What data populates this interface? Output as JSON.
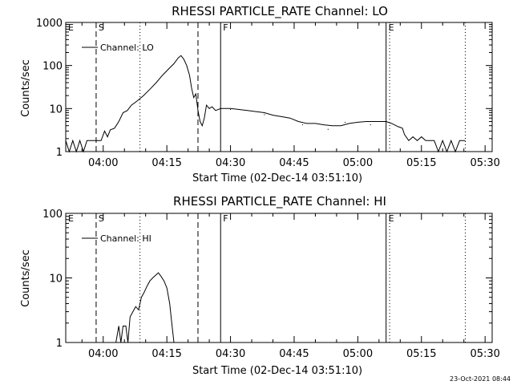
{
  "footer": {
    "timestamp": "23-Oct-2021 08:44"
  },
  "chart_data": [
    {
      "type": "line",
      "title": "RHESSI PARTICLE_RATE Channel: LO",
      "xlabel": "Start Time (02-Dec-14 03:51:10)",
      "ylabel": "Counts/sec",
      "y_scale": "log",
      "ylim": [
        1,
        1000
      ],
      "y_ticks": [
        "1",
        "10",
        "100",
        "1000"
      ],
      "x_ticks": [
        "04:00",
        "04:15",
        "04:30",
        "04:45",
        "05:00",
        "05:15",
        "05:30"
      ],
      "xlim": [
        "03:51:10",
        "05:31:40"
      ],
      "grid": false,
      "legend": {
        "position": "top-left",
        "label": "Channel: LO"
      },
      "markers": [
        {
          "label": "E",
          "time": "03:51:10",
          "style": "solid"
        },
        {
          "label": "S",
          "time": "03:58:20",
          "style": "dashed"
        },
        {
          "label": "",
          "time": "04:08:40",
          "style": "dotted"
        },
        {
          "label": "",
          "time": "04:22:20",
          "style": "dashed"
        },
        {
          "label": "F",
          "time": "04:27:40",
          "style": "solid"
        },
        {
          "label": "E",
          "time": "05:06:40",
          "style": "solid"
        },
        {
          "label": "",
          "time": "05:07:30",
          "style": "dotted"
        },
        {
          "label": "",
          "time": "05:25:20",
          "style": "dotted"
        }
      ],
      "series": [
        {
          "name": "Channel: LO",
          "points": [
            [
              "03:51:10",
              1.8
            ],
            [
              "03:52:00",
              1
            ],
            [
              "03:52:50",
              1.8
            ],
            [
              "03:53:40",
              1
            ],
            [
              "03:54:30",
              1.8
            ],
            [
              "03:55:20",
              1
            ],
            [
              "03:56:10",
              1.8
            ],
            [
              "03:57:00",
              1.8
            ],
            [
              "03:58:20",
              1.8
            ],
            [
              "03:59:30",
              1.8
            ],
            [
              "04:00:20",
              3
            ],
            [
              "04:01:00",
              2.2
            ],
            [
              "04:01:40",
              3.2
            ],
            [
              "04:02:40",
              3.5
            ],
            [
              "04:03:40",
              5
            ],
            [
              "04:04:40",
              8
            ],
            [
              "04:05:40",
              9
            ],
            [
              "04:06:40",
              12
            ],
            [
              "04:08:00",
              15
            ],
            [
              "04:09:30",
              20
            ],
            [
              "04:11:00",
              28
            ],
            [
              "04:12:30",
              40
            ],
            [
              "04:14:00",
              60
            ],
            [
              "04:15:30",
              85
            ],
            [
              "04:16:40",
              110
            ],
            [
              "04:17:40",
              150
            ],
            [
              "04:18:20",
              170
            ],
            [
              "04:19:00",
              140
            ],
            [
              "04:19:40",
              100
            ],
            [
              "04:20:20",
              60
            ],
            [
              "04:20:50",
              30
            ],
            [
              "04:21:20",
              18
            ],
            [
              "04:21:50",
              22
            ],
            [
              "04:22:20",
              9
            ],
            [
              "04:22:50",
              5
            ],
            [
              "04:23:20",
              4
            ],
            [
              "04:23:50",
              6
            ],
            [
              "04:24:20",
              12
            ],
            [
              "04:25:00",
              10
            ],
            [
              "04:25:40",
              11
            ],
            [
              "04:26:30",
              9
            ],
            [
              "04:27:40",
              10
            ],
            [
              "04:30:00",
              10
            ],
            [
              "04:32:00",
              9.5
            ],
            [
              "04:34:00",
              9
            ],
            [
              "04:36:00",
              8.5
            ],
            [
              "04:38:00",
              8
            ],
            [
              "04:40:00",
              7
            ],
            [
              "04:42:00",
              6.5
            ],
            [
              "04:44:00",
              6
            ],
            [
              "04:46:00",
              5
            ],
            [
              "04:48:00",
              4.5
            ],
            [
              "04:50:00",
              4.5
            ],
            [
              "04:52:00",
              4.2
            ],
            [
              "04:54:00",
              4
            ],
            [
              "04:56:00",
              4
            ],
            [
              "04:58:00",
              4.5
            ],
            [
              "05:00:00",
              4.8
            ],
            [
              "05:02:00",
              5
            ],
            [
              "05:04:00",
              5
            ],
            [
              "05:06:40",
              5
            ],
            [
              "05:08:00",
              4.5
            ],
            [
              "05:09:30",
              3.8
            ],
            [
              "05:10:30",
              3.5
            ],
            [
              "05:11:00",
              2.5
            ],
            [
              "05:12:00",
              1.8
            ],
            [
              "05:13:00",
              2.2
            ],
            [
              "05:14:00",
              1.8
            ],
            [
              "05:15:00",
              2.2
            ],
            [
              "05:16:00",
              1.8
            ],
            [
              "05:17:00",
              1.8
            ],
            [
              "05:18:00",
              1.8
            ],
            [
              "05:19:00",
              1
            ],
            [
              "05:20:00",
              1.8
            ],
            [
              "05:21:00",
              1
            ],
            [
              "05:22:00",
              1.8
            ],
            [
              "05:23:00",
              1
            ],
            [
              "05:24:00",
              1.8
            ],
            [
              "05:25:20",
              1.8
            ]
          ],
          "jitter": [
            [
              "04:30:00",
              9.5
            ],
            [
              "04:38:00",
              7.2
            ],
            [
              "04:47:00",
              4.2
            ],
            [
              "04:53:00",
              3.3
            ],
            [
              "04:57:00",
              4.8
            ],
            [
              "05:03:00",
              4.2
            ]
          ]
        }
      ]
    },
    {
      "type": "line",
      "title": "RHESSI PARTICLE_RATE Channel: HI",
      "xlabel": "Start Time (02-Dec-14 03:51:10)",
      "ylabel": "Counts/sec",
      "y_scale": "log",
      "ylim": [
        1,
        100
      ],
      "y_ticks": [
        "1",
        "10",
        "100"
      ],
      "x_ticks": [
        "04:00",
        "04:15",
        "04:30",
        "04:45",
        "05:00",
        "05:15",
        "05:30"
      ],
      "xlim": [
        "03:51:10",
        "05:31:40"
      ],
      "grid": false,
      "legend": {
        "position": "top-left",
        "label": "Channel: HI"
      },
      "markers": [
        {
          "label": "E",
          "time": "03:51:10",
          "style": "solid"
        },
        {
          "label": "S",
          "time": "03:58:20",
          "style": "dashed"
        },
        {
          "label": "",
          "time": "04:08:40",
          "style": "dotted"
        },
        {
          "label": "",
          "time": "04:22:20",
          "style": "dashed"
        },
        {
          "label": "F",
          "time": "04:27:40",
          "style": "solid"
        },
        {
          "label": "E",
          "time": "05:06:40",
          "style": "solid"
        },
        {
          "label": "",
          "time": "05:07:30",
          "style": "dotted"
        },
        {
          "label": "",
          "time": "05:25:20",
          "style": "dotted"
        }
      ],
      "series": [
        {
          "name": "Channel: HI",
          "points": [
            [
              "04:03:00",
              1
            ],
            [
              "04:03:40",
              1.8
            ],
            [
              "04:04:10",
              1
            ],
            [
              "04:04:40",
              1.8
            ],
            [
              "04:05:20",
              1.8
            ],
            [
              "04:05:50",
              1
            ],
            [
              "04:06:20",
              2.5
            ],
            [
              "04:07:00",
              3
            ],
            [
              "04:07:40",
              3.6
            ],
            [
              "04:08:20",
              3.2
            ],
            [
              "04:09:00",
              5
            ],
            [
              "04:09:40",
              6
            ],
            [
              "04:10:20",
              7.5
            ],
            [
              "04:11:00",
              9
            ],
            [
              "04:11:40",
              10
            ],
            [
              "04:12:20",
              11
            ],
            [
              "04:13:00",
              12
            ],
            [
              "04:13:40",
              10.5
            ],
            [
              "04:14:20",
              9
            ],
            [
              "04:15:00",
              7
            ],
            [
              "04:15:40",
              4
            ],
            [
              "04:16:10",
              2
            ],
            [
              "04:16:40",
              1
            ]
          ],
          "jitter": []
        }
      ]
    }
  ]
}
